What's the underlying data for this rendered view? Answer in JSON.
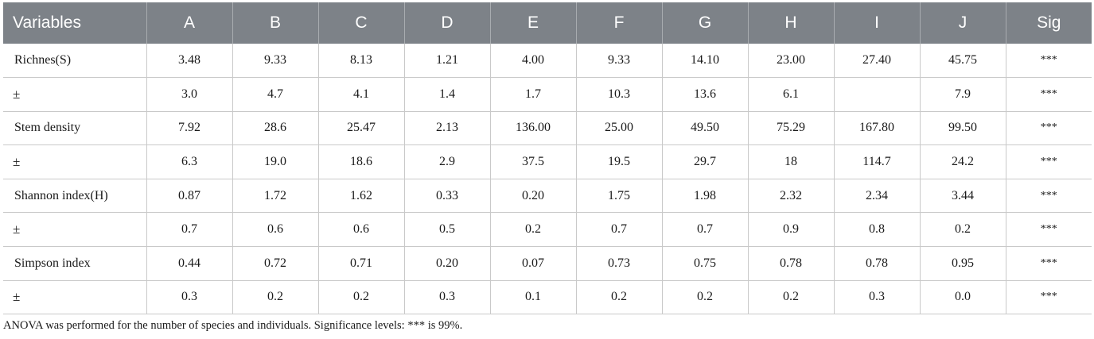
{
  "table": {
    "headers": [
      "Variables",
      "A",
      "B",
      "C",
      "D",
      "E",
      "F",
      "G",
      "H",
      "I",
      "J",
      "Sig"
    ],
    "rows": [
      {
        "label": "Richnes(S)",
        "values": [
          "3.48",
          "9.33",
          "8.13",
          "1.21",
          "4.00",
          "9.33",
          "14.10",
          "23.00",
          "27.40",
          "45.75"
        ],
        "sig": "***"
      },
      {
        "label": "±",
        "values": [
          "3.0",
          "4.7",
          "4.1",
          "1.4",
          "1.7",
          "10.3",
          "13.6",
          "6.1",
          "",
          "7.9"
        ],
        "sig": "***"
      },
      {
        "label": "Stem density",
        "values": [
          "7.92",
          "28.6",
          "25.47",
          "2.13",
          "136.00",
          "25.00",
          "49.50",
          "75.29",
          "167.80",
          "99.50"
        ],
        "sig": "***"
      },
      {
        "label": "±",
        "values": [
          "6.3",
          "19.0",
          "18.6",
          "2.9",
          "37.5",
          "19.5",
          "29.7",
          "18",
          "114.7",
          "24.2"
        ],
        "sig": "***"
      },
      {
        "label": "Shannon index(H)",
        "values": [
          "0.87",
          "1.72",
          "1.62",
          "0.33",
          "0.20",
          "1.75",
          "1.98",
          "2.32",
          "2.34",
          "3.44"
        ],
        "sig": "***"
      },
      {
        "label": "±",
        "values": [
          "0.7",
          "0.6",
          "0.6",
          "0.5",
          "0.2",
          "0.7",
          "0.7",
          "0.9",
          "0.8",
          "0.2"
        ],
        "sig": "***"
      },
      {
        "label": "Simpson index",
        "values": [
          "0.44",
          "0.72",
          "0.71",
          "0.20",
          "0.07",
          "0.73",
          "0.75",
          "0.78",
          "0.78",
          "0.95"
        ],
        "sig": "***"
      },
      {
        "label": "±",
        "values": [
          "0.3",
          "0.2",
          "0.2",
          "0.3",
          "0.1",
          "0.2",
          "0.2",
          "0.2",
          "0.3",
          "0.0"
        ],
        "sig": "***"
      }
    ]
  },
  "footnote": "ANOVA was performed for the number of species and individuals. Significance levels: *** is 99%.",
  "colors": {
    "header_bg": "#7d8288",
    "header_text": "#ffffff",
    "grid": "#c9c9c9"
  }
}
